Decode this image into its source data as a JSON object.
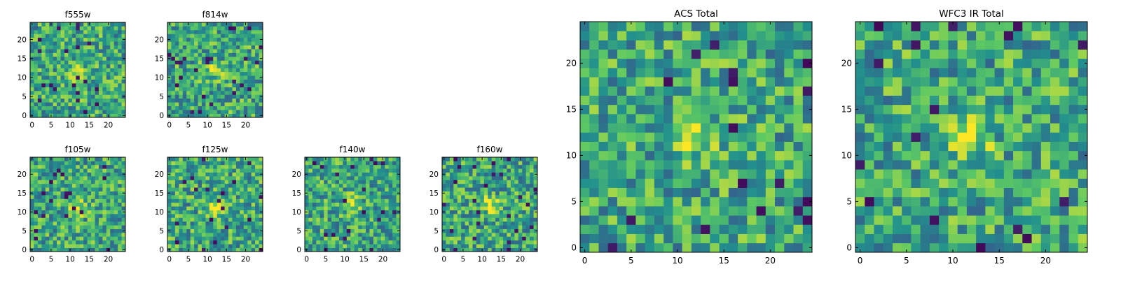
{
  "figure": {
    "title": "",
    "colormap": [
      "#440154",
      "#3b528b",
      "#21908d",
      "#5dc963",
      "#fde725"
    ]
  },
  "chart_data": [
    {
      "type": "heatmap",
      "title": "f555w",
      "grid_size": 25,
      "seed": 11,
      "x_ticks": [
        0,
        5,
        10,
        15,
        20
      ],
      "y_ticks": [
        0,
        5,
        10,
        15,
        20
      ],
      "center": [
        12,
        11
      ],
      "xlim": [
        -0.5,
        24.5
      ],
      "ylim": [
        -0.5,
        24.5
      ]
    },
    {
      "type": "heatmap",
      "title": "f814w",
      "grid_size": 25,
      "seed": 23,
      "x_ticks": [
        0,
        5,
        10,
        15,
        20
      ],
      "y_ticks": [
        0,
        5,
        10,
        15,
        20
      ],
      "center": [
        12,
        12
      ],
      "xlim": [
        -0.5,
        24.5
      ],
      "ylim": [
        -0.5,
        24.5
      ]
    },
    {
      "type": "heatmap",
      "title": "f105w",
      "grid_size": 25,
      "seed": 37,
      "x_ticks": [
        0,
        5,
        10,
        15,
        20
      ],
      "y_ticks": [
        0,
        5,
        10,
        15,
        20
      ],
      "center": [
        12,
        11
      ],
      "xlim": [
        -0.5,
        24.5
      ],
      "ylim": [
        -0.5,
        24.5
      ]
    },
    {
      "type": "heatmap",
      "title": "f125w",
      "grid_size": 25,
      "seed": 41,
      "x_ticks": [
        0,
        5,
        10,
        15,
        20
      ],
      "y_ticks": [
        0,
        5,
        10,
        15,
        20
      ],
      "center": [
        12,
        11
      ],
      "xlim": [
        -0.5,
        24.5
      ],
      "ylim": [
        -0.5,
        24.5
      ]
    },
    {
      "type": "heatmap",
      "title": "f140w",
      "grid_size": 25,
      "seed": 53,
      "x_ticks": [
        0,
        5,
        10,
        15,
        20
      ],
      "y_ticks": [
        0,
        5,
        10,
        15,
        20
      ],
      "center": [
        12,
        12
      ],
      "xlim": [
        -0.5,
        24.5
      ],
      "ylim": [
        -0.5,
        24.5
      ]
    },
    {
      "type": "heatmap",
      "title": "f160w",
      "grid_size": 25,
      "seed": 67,
      "x_ticks": [
        0,
        5,
        10,
        15,
        20
      ],
      "y_ticks": [
        0,
        5,
        10,
        15,
        20
      ],
      "center": [
        12,
        12
      ],
      "xlim": [
        -0.5,
        24.5
      ],
      "ylim": [
        -0.5,
        24.5
      ]
    },
    {
      "type": "heatmap",
      "title": "ACS Total",
      "grid_size": 25,
      "seed": 79,
      "x_ticks": [
        0,
        5,
        10,
        15,
        20
      ],
      "y_ticks": [
        0,
        5,
        10,
        15,
        20
      ],
      "center": [
        12,
        12
      ],
      "xlim": [
        -0.5,
        24.5
      ],
      "ylim": [
        -0.5,
        24.5
      ]
    },
    {
      "type": "heatmap",
      "title": "WFC3 IR Total",
      "grid_size": 25,
      "seed": 97,
      "x_ticks": [
        0,
        5,
        10,
        15,
        20
      ],
      "y_ticks": [
        0,
        5,
        10,
        15,
        20
      ],
      "center": [
        12,
        12
      ],
      "xlim": [
        -0.5,
        24.5
      ],
      "ylim": [
        -0.5,
        24.5
      ]
    }
  ]
}
